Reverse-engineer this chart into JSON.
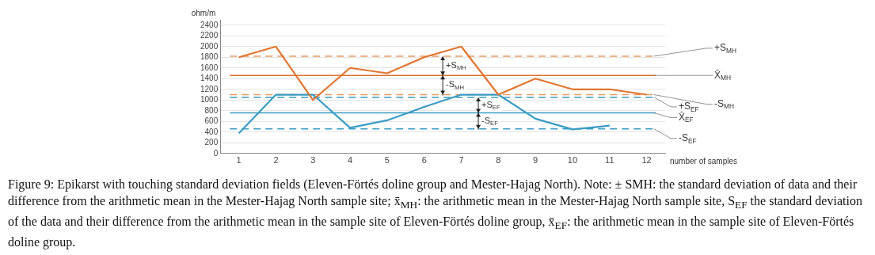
{
  "chart_data": {
    "type": "line",
    "x": [
      1,
      2,
      3,
      4,
      5,
      6,
      7,
      8,
      9,
      10,
      11,
      12
    ],
    "xlim": [
      0.5,
      12.5
    ],
    "xticks": [
      1,
      2,
      3,
      4,
      5,
      6,
      7,
      8,
      9,
      10,
      11,
      12
    ],
    "xlabel": "number of samples",
    "ylabel": "ohm/m",
    "series": [
      {
        "color": "#e07630",
        "values": [
          1800,
          2000,
          1000,
          1600,
          1500,
          1800,
          2000,
          1100,
          1400,
          1200,
          1200,
          1100
        ]
      },
      {
        "color": "#3a9cc4",
        "x": [
          1,
          2,
          3,
          4,
          5,
          6,
          7,
          8,
          9,
          10,
          11
        ],
        "values": [
          380,
          1100,
          1100,
          480,
          620,
          870,
          1100,
          1100,
          650,
          450,
          520
        ]
      }
    ],
    "ylim": [
      0,
      2500
    ],
    "yticks": [
      0,
      200,
      400,
      600,
      800,
      1000,
      1200,
      1400,
      1600,
      1800,
      2000,
      2200,
      2400
    ],
    "grid": "y",
    "legend": false,
    "marker": "none",
    "line_style": "solid",
    "ref_lines": [
      {
        "axis": "y",
        "value": 1820,
        "label": "+S$_{MH}$",
        "color": "#e89a60",
        "line_style": "dashed"
      },
      {
        "axis": "y",
        "value": 1460,
        "label": "X̄$_{MH}$",
        "color": "#e07630",
        "line_style": "solid"
      },
      {
        "axis": "y",
        "value": 1100,
        "label": "-S$_{MH}$",
        "color": "#e89a60",
        "line_style": "dashed"
      },
      {
        "axis": "y",
        "value": 1050,
        "label": "+S$_{EF}$",
        "color": "#3a9cc4",
        "line_style": "dashed"
      },
      {
        "axis": "y",
        "value": 760,
        "label": "X̄$_{EF}$",
        "color": "#3a9cc4",
        "line_style": "solid"
      },
      {
        "axis": "y",
        "value": 460,
        "label": "-S$_{EF}$",
        "color": "#3a9cc4",
        "line_style": "dashed"
      }
    ],
    "annotations": [
      {
        "text": "+S$_{MH}$",
        "y": 1820
      },
      {
        "text": "-S$_{MH}$",
        "y": 1100
      },
      {
        "text": "+S$_{EF}$",
        "y": 1050
      },
      {
        "text": "-S$_{EF}$",
        "y": 460
      },
      "Figure 9: Epikarst with touching standard deviation fields (Eleven-Förtés doline group and Mester-Hajag North). Note: ± SMH: the standard deviation of data and their difference from the arithmetic mean in the Mester-Hajag North sample site; x̄$_{MH}$: the arithmetic mean in the Mester-Hajag North sample site, S$_{EF}$ the standard deviation of the data and their difference from the arithmetic mean in the sample site of Eleven-Förtés doline group, x̄$_{EF}$: the arithmetic mean in the sample site of Eleven-Förtés doline group."
    ]
  }
}
